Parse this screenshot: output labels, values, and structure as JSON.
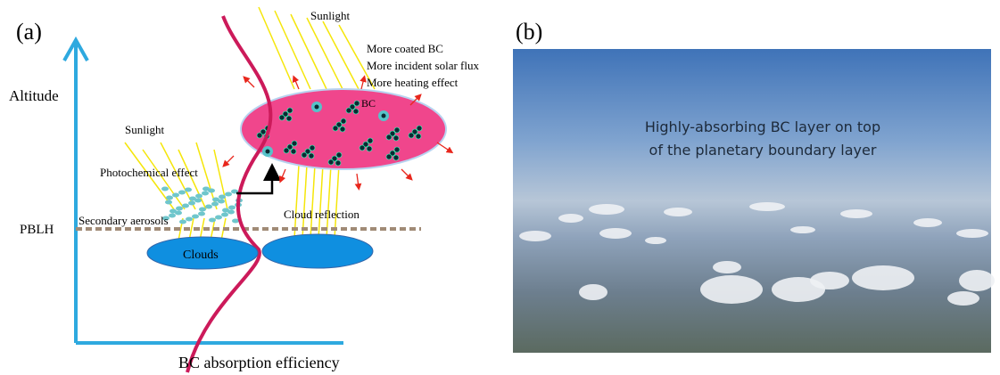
{
  "panel_a": {
    "label": "(a)",
    "y_axis_label": "Altitude",
    "x_axis_label": "BC absorption efficiency",
    "pblh_label": "PBLH",
    "sunlight_top": "Sunlight",
    "sunlight_left": "Sunlight",
    "effects": [
      "More coated BC",
      "More incident solar flux",
      "More heating effect"
    ],
    "bc_label": "BC",
    "photochemical_label": "Photochemical effect",
    "secondary_aerosols_label": "Secondary  aerosols",
    "cloud_reflection_label": "Cloud reflection",
    "clouds_label": "Clouds"
  },
  "panel_b": {
    "label": "(b)",
    "caption_lines": [
      "Highly-absorbing BC layer on top",
      "of the planetary boundary layer"
    ]
  }
}
